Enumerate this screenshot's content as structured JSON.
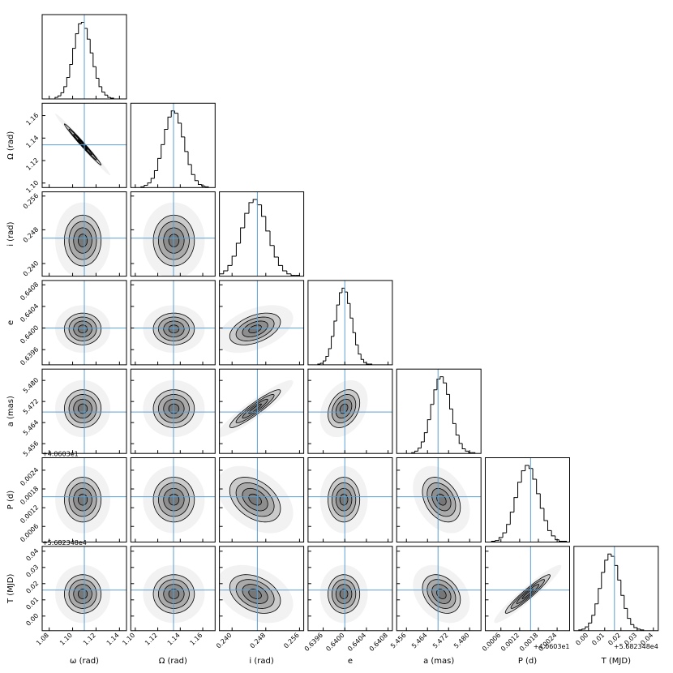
{
  "chart_data": {
    "type": "corner",
    "truth_color": "#5b9fd1",
    "params": [
      {
        "label": "ω (rad)",
        "truth": 1.11,
        "lim": [
          1.074,
          1.146
        ],
        "ticks": [
          1.08,
          {
            "value": 1.1,
            "label": "1.10"
          },
          1.12,
          1.14
        ],
        "bins": [
          1.085,
          1.0875,
          1.09,
          1.0925,
          1.095,
          1.0975,
          1.1,
          1.1025,
          1.105,
          1.1075,
          1.11,
          1.1125,
          1.115,
          1.1175,
          1.12,
          1.1225,
          1.125,
          1.1275,
          1.13,
          1.1325,
          1.135
        ],
        "counts": [
          2,
          4,
          8,
          16,
          28,
          45,
          66,
          85,
          98,
          100,
          92,
          78,
          60,
          42,
          27,
          16,
          9,
          5,
          2,
          1
        ],
        "corr": []
      },
      {
        "label": "Ω (rad)",
        "truth": 1.134,
        "lim": [
          1.096,
          1.171
        ],
        "ticks": [
          {
            "value": 1.1,
            "label": "1.10"
          },
          1.12,
          1.14,
          1.16
        ],
        "bins": [
          1.105,
          1.108,
          1.111,
          1.114,
          1.117,
          1.12,
          1.123,
          1.126,
          1.129,
          1.132,
          1.135,
          1.138,
          1.141,
          1.144,
          1.147,
          1.15,
          1.153,
          1.156,
          1.159,
          1.162,
          1.165
        ],
        "counts": [
          1,
          3,
          6,
          12,
          22,
          38,
          56,
          76,
          92,
          100,
          97,
          84,
          66,
          47,
          30,
          17,
          9,
          4,
          2,
          1
        ],
        "corr": [
          -0.99
        ]
      },
      {
        "label": "i (rad)",
        "truth": 0.246,
        "lim": [
          0.237,
          0.257
        ],
        "ticks": [
          {
            "value": 0.24,
            "label": "0.240"
          },
          0.248,
          0.256
        ],
        "bins": [
          0.236,
          0.237,
          0.238,
          0.239,
          0.24,
          0.241,
          0.242,
          0.243,
          0.244,
          0.245,
          0.246,
          0.247,
          0.248,
          0.249,
          0.25,
          0.251,
          0.252,
          0.253,
          0.254,
          0.255,
          0.256
        ],
        "counts": [
          1,
          3,
          7,
          14,
          26,
          43,
          63,
          82,
          96,
          100,
          93,
          78,
          59,
          40,
          25,
          14,
          7,
          3,
          1,
          1
        ],
        "corr": [
          0,
          0
        ]
      },
      {
        "label": "e",
        "truth": 0.64,
        "lim": [
          0.63932,
          0.64088
        ],
        "ticks": [
          0.6396,
          {
            "value": 0.64,
            "label": "0.6400"
          },
          0.6404,
          0.6408
        ],
        "bins": [
          0.6395,
          0.63955,
          0.6396,
          0.63965,
          0.6397,
          0.63975,
          0.6398,
          0.63985,
          0.6399,
          0.63995,
          0.64,
          0.64005,
          0.6401,
          0.64015,
          0.6402,
          0.64025,
          0.6403,
          0.64035,
          0.6404,
          0.64045,
          0.6405
        ],
        "counts": [
          1,
          2,
          5,
          11,
          21,
          37,
          57,
          78,
          94,
          100,
          95,
          80,
          61,
          42,
          26,
          14,
          7,
          3,
          1,
          1
        ],
        "corr": [
          0,
          0,
          0.45
        ]
      },
      {
        "label": "a (mas)",
        "truth": 5.468,
        "lim": [
          5.4523,
          5.4843
        ],
        "ticks": [
          5.456,
          5.464,
          5.472,
          {
            "value": 5.48,
            "label": "5.480"
          }
        ],
        "bins": [
          5.458,
          5.4592,
          5.4604,
          5.4616,
          5.4628,
          5.464,
          5.4652,
          5.4664,
          5.4676,
          5.4688,
          5.47,
          5.4712,
          5.4724,
          5.4736,
          5.4748,
          5.476,
          5.4772,
          5.4784,
          5.4796,
          5.4808,
          5.482
        ],
        "counts": [
          1,
          3,
          7,
          15,
          27,
          44,
          64,
          83,
          97,
          100,
          92,
          77,
          58,
          39,
          24,
          13,
          6,
          3,
          1,
          1
        ],
        "corr": [
          0,
          0,
          0.93,
          0.3
        ]
      },
      {
        "label": "P (d)",
        "truth": 0.00155,
        "lim": [
          0.0001,
          0.0028
        ],
        "offset": "+4.0603e1",
        "ticks": [
          0.0006,
          0.0012,
          0.0018,
          0.0024
        ],
        "bins": [
          0.0003,
          0.00042,
          0.00054,
          0.00066,
          0.00078,
          0.0009,
          0.00102,
          0.00114,
          0.00126,
          0.00138,
          0.0015,
          0.00162,
          0.00174,
          0.00186,
          0.00198,
          0.0021,
          0.00222,
          0.00234,
          0.00246,
          0.00258,
          0.0027
        ],
        "counts": [
          1,
          2,
          6,
          12,
          23,
          39,
          58,
          78,
          93,
          100,
          96,
          82,
          63,
          44,
          28,
          15,
          8,
          3,
          1,
          1
        ],
        "corr": [
          0,
          0,
          -0.4,
          0,
          -0.35
        ]
      },
      {
        "label": "T (MJD)",
        "truth": 0.016,
        "lim": [
          -0.009,
          0.043
        ],
        "offset": "+5.682348e4",
        "ticks": [
          {
            "value": 0,
            "label": "0.00"
          },
          0.01,
          0.02,
          0.03,
          0.04
        ],
        "bins": [
          -0.006,
          -0.004,
          -0.002,
          0,
          0.002,
          0.004,
          0.006,
          0.008,
          0.01,
          0.012,
          0.014,
          0.016,
          0.018,
          0.02,
          0.022,
          0.024,
          0.026,
          0.028,
          0.03,
          0.032,
          0.034
        ],
        "counts": [
          1,
          2,
          5,
          10,
          20,
          35,
          55,
          76,
          92,
          100,
          97,
          85,
          66,
          46,
          29,
          16,
          8,
          4,
          2,
          1
        ],
        "corr": [
          0,
          0,
          -0.35,
          0,
          -0.3,
          0.95
        ]
      }
    ]
  }
}
